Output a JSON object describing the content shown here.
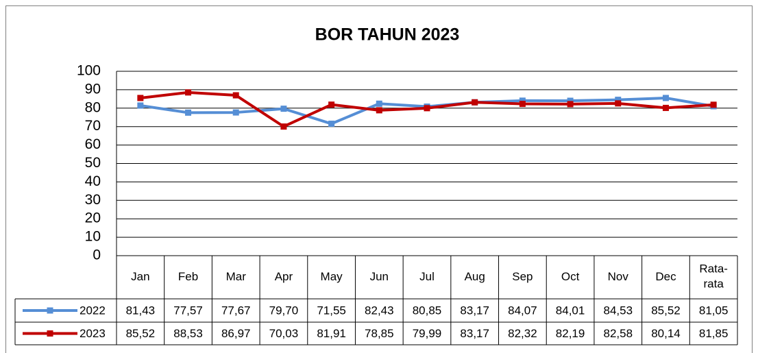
{
  "chart_data": {
    "type": "line",
    "title": "BOR TAHUN 2023",
    "categories": [
      "Jan",
      "Feb",
      "Mar",
      "Apr",
      "May",
      "Jun",
      "Jul",
      "Aug",
      "Sep",
      "Oct",
      "Nov",
      "Dec",
      "Rata-rata"
    ],
    "series": [
      {
        "name": "2022",
        "color": "#558ed5",
        "values": [
          81.43,
          77.57,
          77.67,
          79.7,
          71.55,
          82.43,
          80.85,
          83.17,
          84.07,
          84.01,
          84.53,
          85.52,
          81.05
        ],
        "value_labels": [
          "81,43",
          "77,57",
          "77,67",
          "79,70",
          "71,55",
          "82,43",
          "80,85",
          "83,17",
          "84,07",
          "84,01",
          "84,53",
          "85,52",
          "81,05"
        ]
      },
      {
        "name": "2023",
        "color": "#c00000",
        "values": [
          85.52,
          88.53,
          86.97,
          70.03,
          81.91,
          78.85,
          79.99,
          83.17,
          82.32,
          82.19,
          82.58,
          80.14,
          81.85
        ],
        "value_labels": [
          "85,52",
          "88,53",
          "86,97",
          "70,03",
          "81,91",
          "78,85",
          "79,99",
          "83,17",
          "82,32",
          "82,19",
          "82,58",
          "80,14",
          "81,85"
        ]
      }
    ],
    "ylim": [
      0,
      100
    ],
    "yticks": [
      0,
      10,
      20,
      30,
      40,
      50,
      60,
      70,
      80,
      90,
      100
    ],
    "grid": true
  }
}
